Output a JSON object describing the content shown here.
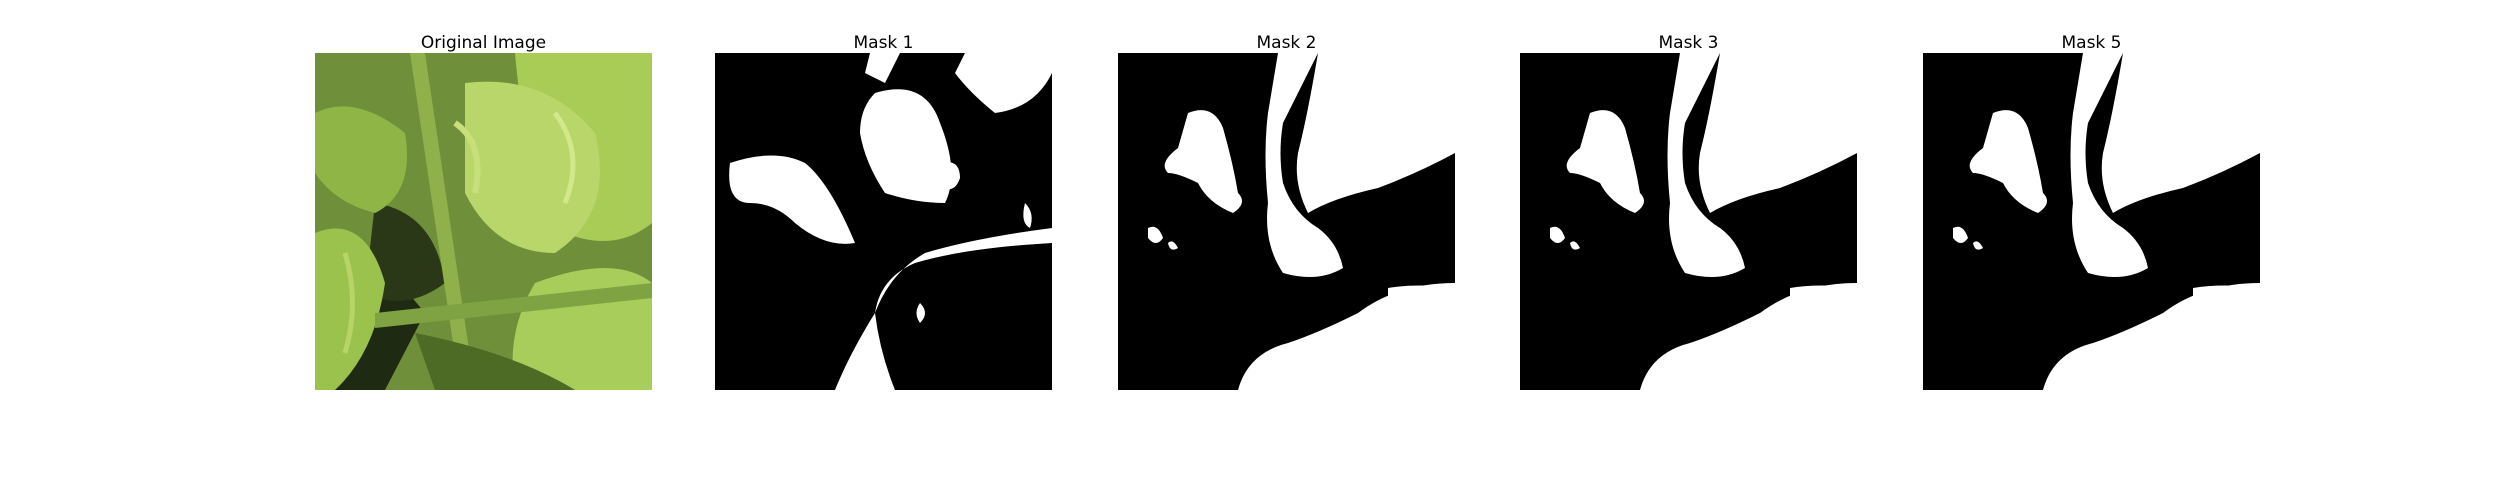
{
  "figure": {
    "panels": [
      {
        "id": "original",
        "title": "Original Image",
        "content": "photo-of-green-curly-leaves"
      },
      {
        "id": "mask1",
        "title": "Mask 1",
        "content": "binary-mask"
      },
      {
        "id": "mask2",
        "title": "Mask 2",
        "content": "binary-mask"
      },
      {
        "id": "mask3",
        "title": "Mask 3",
        "content": "binary-mask"
      },
      {
        "id": "mask5",
        "title": "Mask 5",
        "content": "binary-mask"
      }
    ],
    "colors": {
      "mask_foreground": "#ffffff",
      "mask_background": "#000000",
      "leaf_light": "#b9d66a",
      "leaf_mid": "#7ea83a",
      "leaf_dark": "#3e5a1e",
      "shadow": "#1b2410"
    }
  }
}
